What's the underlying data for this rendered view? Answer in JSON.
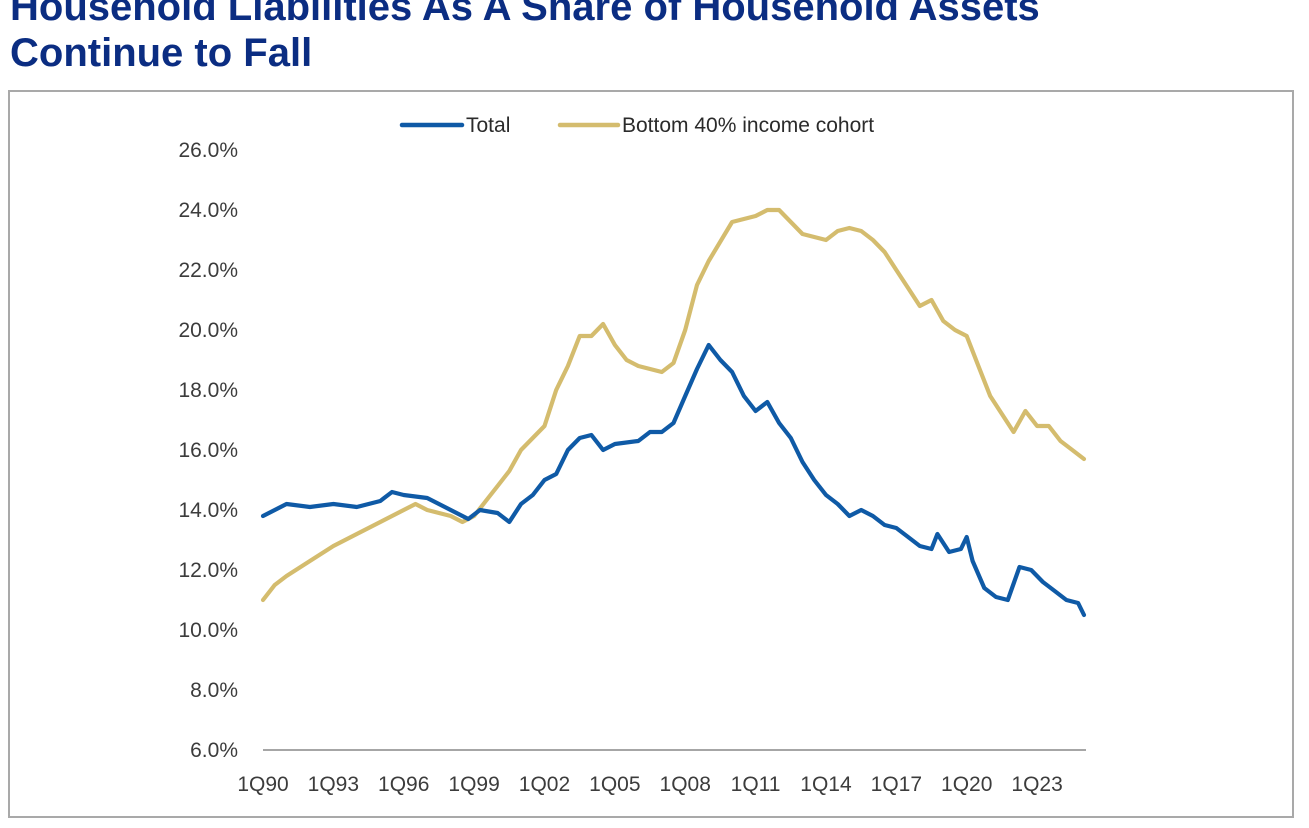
{
  "page": {
    "title_line1": "Household Liabilities As A Share of Household Assets",
    "title_line2": "Continue to Fall"
  },
  "chart_data": {
    "type": "line",
    "title": "Household Liabilities As A Share of Household Assets Continue to Fall",
    "xlabel": "",
    "ylabel": "",
    "ylim": [
      6.0,
      26.0
    ],
    "yticks": [
      "6.0%",
      "8.0%",
      "10.0%",
      "12.0%",
      "14.0%",
      "16.0%",
      "18.0%",
      "20.0%",
      "22.0%",
      "24.0%",
      "26.0%"
    ],
    "xticks": [
      "1Q90",
      "1Q93",
      "1Q96",
      "1Q99",
      "1Q02",
      "1Q05",
      "1Q08",
      "1Q11",
      "1Q14",
      "1Q17",
      "1Q20",
      "1Q23"
    ],
    "x_range": [
      "1Q90",
      "1Q25"
    ],
    "grid": false,
    "legend_position": "top",
    "series": [
      {
        "name": "Total",
        "color": "#0f5aa6",
        "points": [
          [
            "1Q90",
            13.8
          ],
          [
            "1Q91",
            14.2
          ],
          [
            "1Q92",
            14.1
          ],
          [
            "1Q93",
            14.2
          ],
          [
            "1Q94",
            14.1
          ],
          [
            "1Q95",
            14.3
          ],
          [
            "3Q95",
            14.6
          ],
          [
            "1Q96",
            14.5
          ],
          [
            "1Q97",
            14.4
          ],
          [
            "1Q98",
            14.0
          ],
          [
            "4Q98",
            13.7
          ],
          [
            "2Q99",
            14.0
          ],
          [
            "1Q00",
            13.9
          ],
          [
            "3Q00",
            13.6
          ],
          [
            "1Q01",
            14.2
          ],
          [
            "3Q01",
            14.5
          ],
          [
            "1Q02",
            15.0
          ],
          [
            "3Q02",
            15.2
          ],
          [
            "1Q03",
            16.0
          ],
          [
            "3Q03",
            16.4
          ],
          [
            "1Q04",
            16.5
          ],
          [
            "3Q04",
            16.0
          ],
          [
            "1Q05",
            16.2
          ],
          [
            "1Q06",
            16.3
          ],
          [
            "3Q06",
            16.6
          ],
          [
            "1Q07",
            16.6
          ],
          [
            "3Q07",
            16.9
          ],
          [
            "1Q08",
            17.8
          ],
          [
            "3Q08",
            18.7
          ],
          [
            "1Q09",
            19.5
          ],
          [
            "3Q09",
            19.0
          ],
          [
            "1Q10",
            18.6
          ],
          [
            "3Q10",
            17.8
          ],
          [
            "1Q11",
            17.3
          ],
          [
            "3Q11",
            17.6
          ],
          [
            "1Q12",
            16.9
          ],
          [
            "3Q12",
            16.4
          ],
          [
            "1Q13",
            15.6
          ],
          [
            "3Q13",
            15.0
          ],
          [
            "1Q14",
            14.5
          ],
          [
            "3Q14",
            14.2
          ],
          [
            "1Q15",
            13.8
          ],
          [
            "3Q15",
            14.0
          ],
          [
            "1Q16",
            13.8
          ],
          [
            "3Q16",
            13.5
          ],
          [
            "1Q17",
            13.4
          ],
          [
            "3Q17",
            13.1
          ],
          [
            "1Q18",
            12.8
          ],
          [
            "3Q18",
            12.7
          ],
          [
            "4Q18",
            13.2
          ],
          [
            "2Q19",
            12.6
          ],
          [
            "4Q19",
            12.7
          ],
          [
            "1Q20",
            13.1
          ],
          [
            "2Q20",
            12.3
          ],
          [
            "4Q20",
            11.4
          ],
          [
            "2Q21",
            11.1
          ],
          [
            "4Q21",
            11.0
          ],
          [
            "2Q22",
            12.1
          ],
          [
            "4Q22",
            12.0
          ],
          [
            "2Q23",
            11.6
          ],
          [
            "4Q23",
            11.3
          ],
          [
            "2Q24",
            11.0
          ],
          [
            "4Q24",
            10.9
          ],
          [
            "1Q25",
            10.5
          ]
        ]
      },
      {
        "name": "Bottom 40% income cohort",
        "color": "#d4bc6e",
        "points": [
          [
            "1Q90",
            11.0
          ],
          [
            "3Q90",
            11.5
          ],
          [
            "1Q91",
            11.8
          ],
          [
            "1Q92",
            12.3
          ],
          [
            "1Q93",
            12.8
          ],
          [
            "1Q94",
            13.2
          ],
          [
            "1Q95",
            13.6
          ],
          [
            "1Q96",
            14.0
          ],
          [
            "3Q96",
            14.2
          ],
          [
            "1Q97",
            14.0
          ],
          [
            "1Q98",
            13.8
          ],
          [
            "3Q98",
            13.6
          ],
          [
            "1Q99",
            13.8
          ],
          [
            "3Q99",
            14.3
          ],
          [
            "1Q00",
            14.8
          ],
          [
            "3Q00",
            15.3
          ],
          [
            "1Q01",
            16.0
          ],
          [
            "1Q02",
            16.8
          ],
          [
            "3Q02",
            18.0
          ],
          [
            "1Q03",
            18.8
          ],
          [
            "3Q03",
            19.8
          ],
          [
            "1Q04",
            19.8
          ],
          [
            "3Q04",
            20.2
          ],
          [
            "1Q05",
            19.5
          ],
          [
            "3Q05",
            19.0
          ],
          [
            "1Q06",
            18.8
          ],
          [
            "1Q07",
            18.6
          ],
          [
            "3Q07",
            18.9
          ],
          [
            "1Q08",
            20.0
          ],
          [
            "3Q08",
            21.5
          ],
          [
            "1Q09",
            22.3
          ],
          [
            "1Q10",
            23.6
          ],
          [
            "1Q11",
            23.8
          ],
          [
            "3Q11",
            24.0
          ],
          [
            "1Q12",
            24.0
          ],
          [
            "3Q12",
            23.6
          ],
          [
            "1Q13",
            23.2
          ],
          [
            "1Q14",
            23.0
          ],
          [
            "3Q14",
            23.3
          ],
          [
            "1Q15",
            23.4
          ],
          [
            "3Q15",
            23.3
          ],
          [
            "1Q16",
            23.0
          ],
          [
            "3Q16",
            22.6
          ],
          [
            "1Q17",
            22.0
          ],
          [
            "3Q17",
            21.4
          ],
          [
            "1Q18",
            20.8
          ],
          [
            "3Q18",
            21.0
          ],
          [
            "1Q19",
            20.3
          ],
          [
            "3Q19",
            20.0
          ],
          [
            "1Q20",
            19.8
          ],
          [
            "3Q20",
            18.8
          ],
          [
            "1Q21",
            17.8
          ],
          [
            "3Q21",
            17.2
          ],
          [
            "1Q22",
            16.6
          ],
          [
            "3Q22",
            17.3
          ],
          [
            "1Q23",
            16.8
          ],
          [
            "3Q23",
            16.8
          ],
          [
            "1Q24",
            16.3
          ],
          [
            "3Q24",
            16.0
          ],
          [
            "1Q25",
            15.7
          ]
        ]
      }
    ]
  }
}
